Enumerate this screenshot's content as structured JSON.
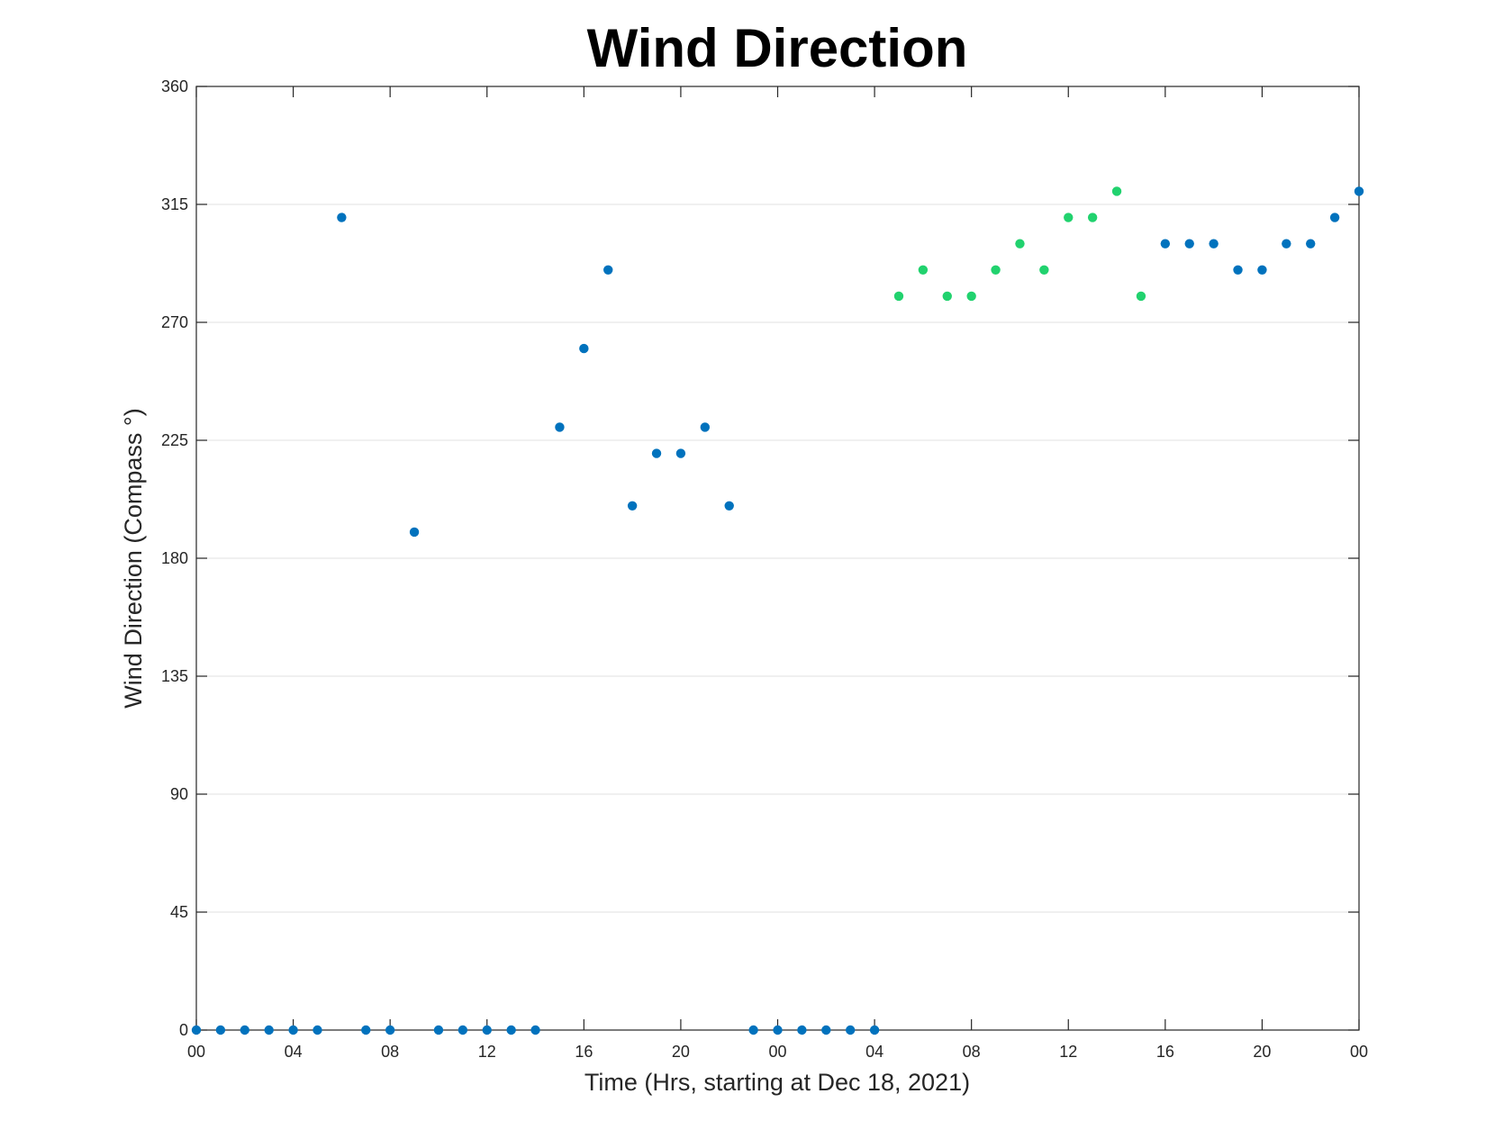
{
  "chart_data": {
    "type": "scatter",
    "title": "Wind Direction",
    "xlabel": "Time (Hrs, starting at Dec 18, 2021)",
    "ylabel": "Wind Direction (Compass °)",
    "ylim": [
      0,
      360
    ],
    "yticks": [
      0,
      45,
      90,
      135,
      180,
      225,
      270,
      315,
      360
    ],
    "xlim_hours": [
      0,
      48
    ],
    "xticks": [
      {
        "hour": 0,
        "label": "00"
      },
      {
        "hour": 4,
        "label": "04"
      },
      {
        "hour": 8,
        "label": "08"
      },
      {
        "hour": 12,
        "label": "12"
      },
      {
        "hour": 16,
        "label": "16"
      },
      {
        "hour": 20,
        "label": "20"
      },
      {
        "hour": 24,
        "label": "00"
      },
      {
        "hour": 28,
        "label": "04"
      },
      {
        "hour": 32,
        "label": "08"
      },
      {
        "hour": 36,
        "label": "12"
      },
      {
        "hour": 40,
        "label": "16"
      },
      {
        "hour": 44,
        "label": "20"
      },
      {
        "hour": 48,
        "label": "00"
      }
    ],
    "grid": "horizontal",
    "colors": {
      "blue": "#0072BD",
      "green": "#21D26E"
    },
    "series": [
      {
        "color": "#0072BD",
        "points": [
          [
            0,
            0
          ],
          [
            1,
            0
          ],
          [
            2,
            0
          ],
          [
            3,
            0
          ],
          [
            4,
            0
          ],
          [
            5,
            0
          ],
          [
            6,
            310
          ],
          [
            7,
            0
          ],
          [
            8,
            0
          ],
          [
            9,
            190
          ],
          [
            10,
            0
          ],
          [
            11,
            0
          ],
          [
            12,
            0
          ],
          [
            13,
            0
          ],
          [
            14,
            0
          ],
          [
            15,
            230
          ],
          [
            16,
            260
          ],
          [
            17,
            290
          ],
          [
            18,
            200
          ],
          [
            19,
            220
          ],
          [
            20,
            220
          ],
          [
            21,
            230
          ],
          [
            22,
            200
          ],
          [
            23,
            0
          ],
          [
            24,
            0
          ],
          [
            25,
            0
          ],
          [
            26,
            0
          ],
          [
            27,
            0
          ],
          [
            28,
            0
          ],
          [
            40,
            300
          ],
          [
            41,
            300
          ],
          [
            42,
            300
          ],
          [
            43,
            290
          ],
          [
            44,
            290
          ],
          [
            45,
            300
          ],
          [
            46,
            300
          ],
          [
            47,
            310
          ],
          [
            48,
            320
          ]
        ]
      },
      {
        "color": "#21D26E",
        "points": [
          [
            29,
            280
          ],
          [
            30,
            290
          ],
          [
            31,
            280
          ],
          [
            32,
            280
          ],
          [
            33,
            290
          ],
          [
            34,
            300
          ],
          [
            35,
            290
          ],
          [
            36,
            310
          ],
          [
            37,
            310
          ],
          [
            38,
            320
          ],
          [
            39,
            280
          ]
        ]
      }
    ]
  }
}
